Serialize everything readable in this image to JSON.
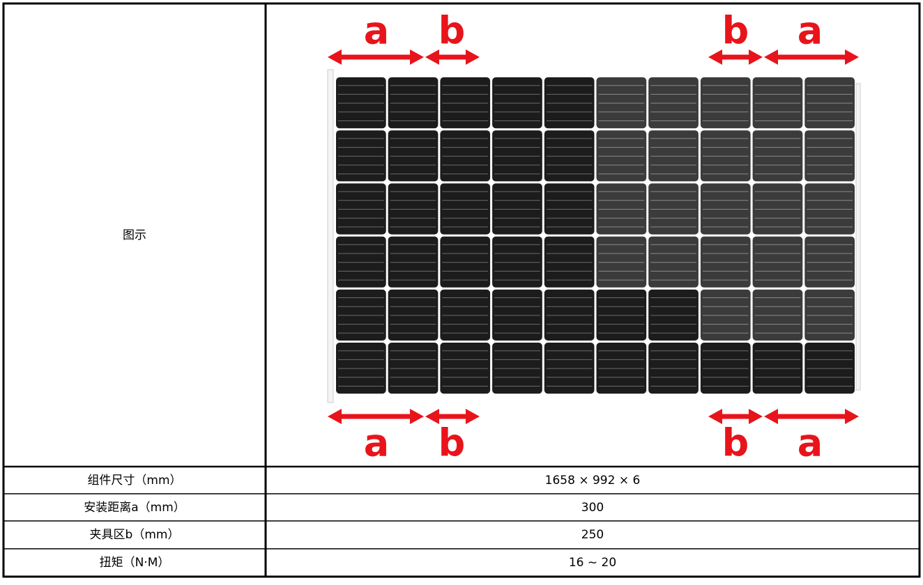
{
  "figure": {
    "label": "图示",
    "top_labels": [
      "a",
      "b",
      "b",
      "a"
    ],
    "bottom_labels": [
      "a",
      "b",
      "b",
      "a"
    ]
  },
  "table": {
    "rows": [
      [
        "组件尺寸（mm）",
        "1658 × 992 × 6"
      ],
      [
        "安装距离a（mm）",
        "300"
      ],
      [
        "夹具区b（mm）",
        "250"
      ],
      [
        "扭矩（N·M）",
        "16 ~ 20"
      ]
    ]
  }
}
